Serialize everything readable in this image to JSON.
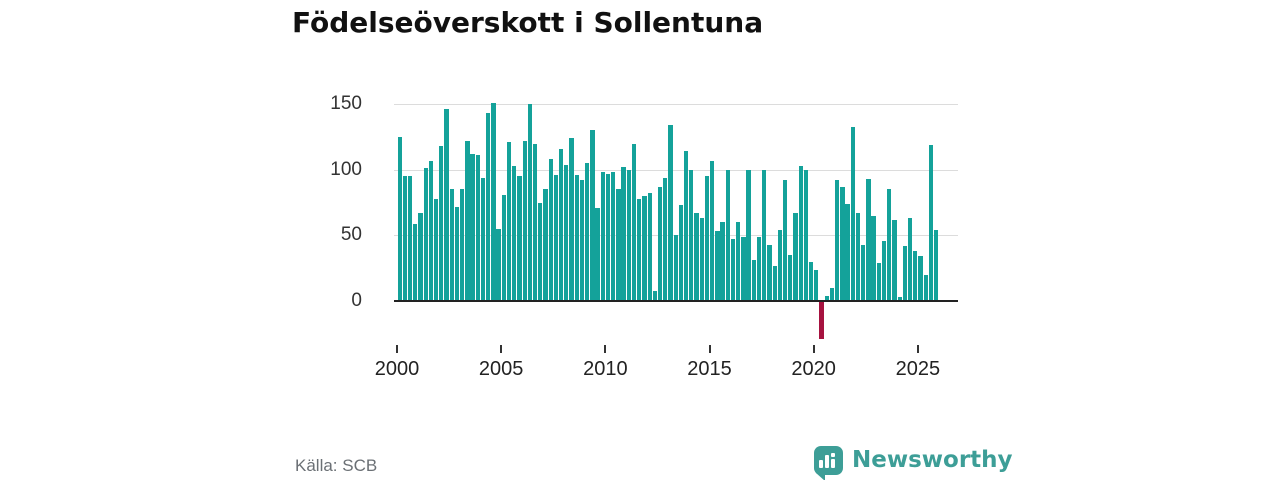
{
  "title": "Födelseöverskott i Sollentuna",
  "source": "Källa: SCB",
  "branding": {
    "name": "Newsworthy"
  },
  "colors": {
    "bar_positive": "#14a29a",
    "bar_negative": "#a6123f",
    "gridline": "#dcdcdc",
    "axis_line": "#222222",
    "tick_text": "#333333",
    "title_text": "#111111",
    "source_text": "#6b7075",
    "brand_teal": "#3d9e97"
  },
  "chart_data": {
    "type": "bar",
    "title": "Födelseöverskott i Sollentuna",
    "period": "quarterly",
    "start": "2000 Q1",
    "end": "2025 Q4",
    "xlabel": "",
    "ylabel": "",
    "x_ticks": [
      2000,
      2005,
      2010,
      2015,
      2020,
      2025
    ],
    "y_ticks": [
      0,
      50,
      100,
      150
    ],
    "ylim": [
      -40,
      160
    ],
    "grid": true,
    "values": [
      125,
      95,
      95,
      59,
      67,
      101,
      107,
      78,
      118,
      146,
      85,
      72,
      85,
      122,
      112,
      111,
      94,
      143,
      151,
      55,
      81,
      121,
      103,
      95,
      122,
      150,
      120,
      75,
      85,
      108,
      96,
      116,
      104,
      124,
      96,
      92,
      105,
      130,
      71,
      98,
      97,
      98,
      85,
      102,
      100,
      120,
      78,
      80,
      82,
      8,
      87,
      94,
      134,
      50,
      73,
      114,
      100,
      67,
      63,
      95,
      107,
      53,
      60,
      100,
      47,
      60,
      49,
      100,
      31,
      49,
      100,
      43,
      27,
      54,
      92,
      35,
      67,
      103,
      100,
      30,
      24,
      -28,
      4,
      10,
      92,
      87,
      74,
      133,
      67,
      43,
      93,
      65,
      29,
      46,
      85,
      62,
      3,
      42,
      63,
      38,
      34,
      20,
      119,
      54
    ]
  }
}
